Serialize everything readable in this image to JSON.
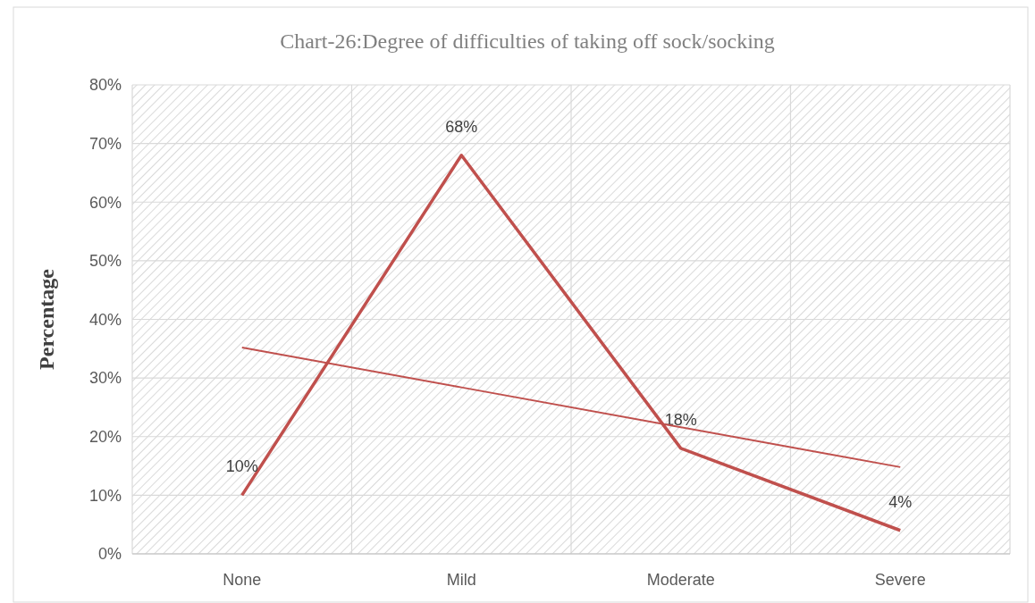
{
  "chart_data": {
    "type": "line",
    "title": "Chart-26:Degree of difficulties of taking off sock/socking",
    "ylabel": "Percentage",
    "categories": [
      "None",
      "Mild",
      "Moderate",
      "Severe"
    ],
    "series": [
      {
        "color": "#c0504d",
        "values": [
          10,
          68,
          18,
          4
        ],
        "value_labels": [
          "10%",
          "68%",
          "18%",
          "4%"
        ]
      },
      {
        "type": "line",
        "color": "#c0504d",
        "x": [
          "None",
          "Mild",
          "Moderate",
          "Severe"
        ],
        "values": [
          35.2,
          28.4,
          21.6,
          14.8
        ]
      }
    ],
    "ylim": [
      0,
      80
    ],
    "yticks": [
      {
        "value": 0,
        "label": "0%"
      },
      {
        "value": 10,
        "label": "10%"
      },
      {
        "value": 20,
        "label": "20%"
      },
      {
        "value": 30,
        "label": "30%"
      },
      {
        "value": 40,
        "label": "40%"
      },
      {
        "value": 50,
        "label": "50%"
      },
      {
        "value": 60,
        "label": "60%"
      },
      {
        "value": 70,
        "label": "70%"
      },
      {
        "value": 80,
        "label": "80%"
      }
    ],
    "grid": true,
    "marker": "none"
  }
}
